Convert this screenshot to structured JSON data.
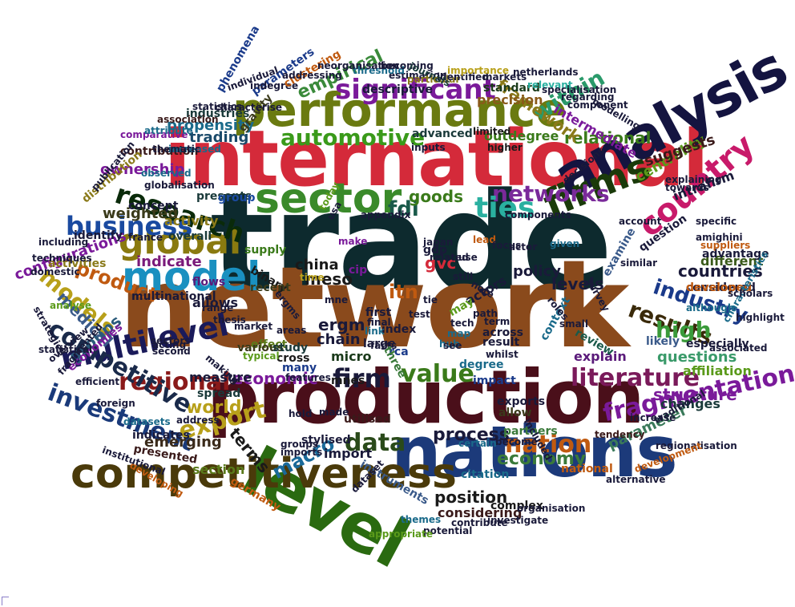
{
  "words": [
    {
      "text": "trade",
      "color": "#0d2a2e"
    },
    {
      "text": "network",
      "color": "#8a4a1c"
    },
    {
      "text": "international",
      "color": "#d42a3a"
    },
    {
      "text": "production",
      "color": "#4a0f1a"
    },
    {
      "text": "nations",
      "color": "#1c3a7a"
    },
    {
      "text": "level",
      "color": "#2a6a10"
    },
    {
      "text": "competitiveness",
      "color": "#4a3a0a"
    },
    {
      "text": "performance",
      "color": "#6a7a10"
    },
    {
      "text": "analysis",
      "color": "#141440"
    },
    {
      "text": "sector",
      "color": "#3a8a2a"
    },
    {
      "text": "model",
      "color": "#1a90c0"
    },
    {
      "text": "firms",
      "color": "#1a3a0a"
    },
    {
      "text": "global",
      "color": "#8a7a10"
    },
    {
      "text": "significant",
      "color": "#7a1a9a"
    },
    {
      "text": "research",
      "color": "#0a2a0a"
    },
    {
      "text": "automotive",
      "color": "#3a9a1a"
    },
    {
      "text": "networks",
      "color": "#7a2a9a"
    },
    {
      "text": "country",
      "color": "#c81a6a"
    },
    {
      "text": "ties",
      "color": "#2ab0a0"
    },
    {
      "text": "business",
      "color": "#1a4aa0"
    },
    {
      "text": "multilevel",
      "color": "#1a1a5a"
    },
    {
      "text": "investment",
      "color": "#1a3a7a"
    },
    {
      "text": "regional",
      "color": "#8a1a1a"
    },
    {
      "text": "models",
      "color": "#b8a01a"
    },
    {
      "text": "literature",
      "color": "#7a1a5a"
    },
    {
      "text": "industry",
      "color": "#1a3a8a"
    },
    {
      "text": "results",
      "color": "#3a2a0a"
    },
    {
      "text": "nation",
      "color": "#c05a10"
    },
    {
      "text": "value",
      "color": "#3a7a1a"
    },
    {
      "text": "data",
      "color": "#2a4a1a"
    },
    {
      "text": "firm",
      "color": "#1a1a3a"
    },
    {
      "text": "export",
      "color": "#b8a01a"
    },
    {
      "text": "world",
      "color": "#b8a01a"
    },
    {
      "text": "fragmentation",
      "color": "#7a1a9a"
    },
    {
      "text": "economy",
      "color": "#3a7a3a"
    },
    {
      "text": "high",
      "color": "#3a9a3a"
    },
    {
      "text": "within",
      "color": "#2a9a6a"
    },
    {
      "text": "competitive",
      "color": "#1a2a4a"
    },
    {
      "text": "fdi",
      "color": "#1a5a4a"
    },
    {
      "text": "macro",
      "color": "#1a6a9a"
    },
    {
      "text": "economic",
      "color": "#7a1a9a"
    },
    {
      "text": "structure",
      "color": "#7a1a9a"
    },
    {
      "text": "process",
      "color": "#1a1a3a"
    },
    {
      "text": "position",
      "color": "#1a1a1a"
    },
    {
      "text": "terms",
      "color": "#1a1a1a"
    },
    {
      "text": "relational",
      "color": "#3a7a1a"
    },
    {
      "text": "questions",
      "color": "#3a9a6a"
    },
    {
      "text": "medical",
      "color": "#3a5a8a"
    },
    {
      "text": "groups",
      "color": "#2a5a7a"
    },
    {
      "text": "ownership",
      "color": "#7a1a9a"
    },
    {
      "text": "product",
      "color": "#c05a10"
    },
    {
      "text": "meso",
      "color": "#1a1a1a"
    },
    {
      "text": "goods",
      "color": "#3a7a1a"
    },
    {
      "text": "empirical",
      "color": "#3a8a3a"
    },
    {
      "text": "framework",
      "color": "#8a7a1a"
    },
    {
      "text": "intermediate",
      "color": "#7a1a9a"
    },
    {
      "text": "centrality",
      "color": "#5a9a1a"
    },
    {
      "text": "countries",
      "color": "#1a1a3a"
    },
    {
      "text": "levels",
      "color": "#1a1a3a"
    },
    {
      "text": "propensity",
      "color": "#1a6a8a"
    },
    {
      "text": "trading",
      "color": "#1a4a6a"
    },
    {
      "text": "emerging",
      "color": "#3a2a1a"
    },
    {
      "text": "indicate",
      "color": "#7a1a7a"
    },
    {
      "text": "activity",
      "color": "#8a7a1a"
    },
    {
      "text": "weighted",
      "color": "#3a3a1a"
    },
    {
      "text": "gvc",
      "color": "#d42a3a"
    },
    {
      "text": "itn",
      "color": "#c05a10"
    },
    {
      "text": "china",
      "color": "#1a1a1a"
    },
    {
      "text": "ergm",
      "color": "#1a1a3a"
    },
    {
      "text": "chain",
      "color": "#1a1a3a"
    },
    {
      "text": "micro",
      "color": "#1a3a1a"
    },
    {
      "text": "import",
      "color": "#1a1a3a"
    },
    {
      "text": "section",
      "color": "#5a7a1a"
    },
    {
      "text": "affiliation",
      "color": "#5a9a1a"
    },
    {
      "text": "changes",
      "color": "#1a3a3a"
    },
    {
      "text": "considered",
      "color": "#1a1a3a"
    },
    {
      "text": "parameter",
      "color": "#3a7a5a"
    },
    {
      "text": "policy",
      "color": "#1a1a3a"
    },
    {
      "text": "different",
      "color": "#3a5a1a"
    },
    {
      "text": "intrafirm",
      "color": "#1a1a3a"
    },
    {
      "text": "suggests",
      "color": "#3a1a1a"
    },
    {
      "text": "advantage",
      "color": "#1a1a3a"
    },
    {
      "text": "developed",
      "color": "#c05a10"
    },
    {
      "text": "especially",
      "color": "#1a1a3a"
    },
    {
      "text": "likely",
      "color": "#3a5a8a"
    },
    {
      "text": "explain",
      "color": "#5a1a7a"
    },
    {
      "text": "review",
      "color": "#1a5a4a"
    },
    {
      "text": "context",
      "color": "#1a6a8a"
    },
    {
      "text": "across",
      "color": "#1a1a3a"
    },
    {
      "text": "result",
      "color": "#1a1a3a"
    },
    {
      "text": "impact",
      "color": "#1a3a8a"
    },
    {
      "text": "exports",
      "color": "#1a1a3a"
    },
    {
      "text": "allow",
      "color": "#3a3a1a"
    },
    {
      "text": "partners",
      "color": "#3a7a3a"
    },
    {
      "text": "considering",
      "color": "#3a1a1a"
    },
    {
      "text": "citation",
      "color": "#1a6a8a"
    },
    {
      "text": "instruments",
      "color": "#3a5a8a"
    },
    {
      "text": "stylised",
      "color": "#1a1a3a"
    },
    {
      "text": "utilised",
      "color": "#3a1a1a"
    },
    {
      "text": "spread",
      "color": "#1a3a3a"
    },
    {
      "text": "measure",
      "color": "#1a1a3a"
    },
    {
      "text": "effect",
      "color": "#5a7a1a"
    },
    {
      "text": "various",
      "color": "#3a3a1a"
    },
    {
      "text": "study",
      "color": "#1a3a3a"
    },
    {
      "text": "cross",
      "color": "#1a1a1a"
    },
    {
      "text": "many",
      "color": "#1a3a8a"
    },
    {
      "text": "mnes",
      "color": "#1a1a1a"
    },
    {
      "text": "index",
      "color": "#1a1a3a"
    },
    {
      "text": "large",
      "color": "#1a1a3a"
    },
    {
      "text": "rca",
      "color": "#1a3a8a"
    },
    {
      "text": "first",
      "color": "#1a1a3a"
    },
    {
      "text": "cip",
      "color": "#7a1a9a"
    },
    {
      "text": "binary",
      "color": "#1a1a1a"
    },
    {
      "text": "multinational",
      "color": "#1a1a3a"
    },
    {
      "text": "configurations",
      "color": "#7a1a9a"
    },
    {
      "text": "allows",
      "color": "#1a1a3a"
    },
    {
      "text": "flows",
      "color": "#5a1a7a"
    },
    {
      "text": "overall",
      "color": "#1a3a3a"
    },
    {
      "text": "recent",
      "color": "#3a3a1a"
    },
    {
      "text": "supply",
      "color": "#3a7a1a"
    },
    {
      "text": "presents",
      "color": "#1a3a3a"
    },
    {
      "text": "group",
      "color": "#1a4aa0"
    },
    {
      "text": "concept",
      "color": "#1a1a3a"
    },
    {
      "text": "contribution",
      "color": "#3a1a1a"
    },
    {
      "text": "comparative",
      "color": "#7a1a9a"
    },
    {
      "text": "globalisation",
      "color": "#1a1a3a"
    },
    {
      "text": "observed",
      "color": "#1a6a8a"
    },
    {
      "text": "distribution",
      "color": "#8a7a1a"
    },
    {
      "text": "identify",
      "color": "#1a1a3a"
    },
    {
      "text": "activities",
      "color": "#8a7a1a"
    },
    {
      "text": "industries",
      "color": "#1a3a3a"
    },
    {
      "text": "statistics",
      "color": "#1a1a3a"
    },
    {
      "text": "phenomena",
      "color": "#1a3a8a"
    },
    {
      "text": "gravity",
      "color": "#3a3a1a"
    },
    {
      "text": "attribute",
      "color": "#1a6a8a"
    },
    {
      "text": "increased",
      "color": "#1a6a8a"
    },
    {
      "text": "association",
      "color": "#3a1a1a"
    },
    {
      "text": "parameters",
      "color": "#1a3a8a"
    },
    {
      "text": "indegree",
      "color": "#1a1a3a"
    },
    {
      "text": "clustering",
      "color": "#c05a10"
    },
    {
      "text": "descriptive",
      "color": "#1a1a3a"
    },
    {
      "text": "estimation",
      "color": "#1a1a3a"
    },
    {
      "text": "particular",
      "color": "#8a7a1a"
    },
    {
      "text": "identified",
      "color": "#1a1a3a"
    },
    {
      "text": "standard",
      "color": "#1a3a1a"
    },
    {
      "text": "precision",
      "color": "#8a5a1a"
    },
    {
      "text": "advanced",
      "color": "#1a3a3a"
    },
    {
      "text": "inputs",
      "color": "#1a1a3a"
    },
    {
      "text": "outdegree",
      "color": "#3a7a1a"
    },
    {
      "text": "higher",
      "color": "#1a1a1a"
    },
    {
      "text": "limited",
      "color": "#1a1a1a"
    },
    {
      "text": "threshold",
      "color": "#1a6a8a"
    },
    {
      "text": "becoming",
      "color": "#1a1a3a"
    },
    {
      "text": "journals",
      "color": "#1a3a3a"
    },
    {
      "text": "markets",
      "color": "#1a1a3a"
    },
    {
      "text": "netherlands",
      "color": "#1a1a3a"
    },
    {
      "text": "relevant",
      "color": "#2ab0a0"
    },
    {
      "text": "specialisation",
      "color": "#1a1a3a"
    },
    {
      "text": "decisions",
      "color": "#1a1a3a"
    },
    {
      "text": "modelling",
      "color": "#1a1a3a"
    },
    {
      "text": "account",
      "color": "#1a1a3a"
    },
    {
      "text": "specific",
      "color": "#1a1a3a"
    },
    {
      "text": "suppliers",
      "color": "#c05a10"
    },
    {
      "text": "similar",
      "color": "#1a1a3a"
    },
    {
      "text": "question",
      "color": "#1a1a3a"
    },
    {
      "text": "examine",
      "color": "#3a5a8a"
    },
    {
      "text": "survey",
      "color": "#1a1a3a"
    },
    {
      "text": "although",
      "color": "#1a6a8a"
    },
    {
      "text": "highlight",
      "color": "#1a1a3a"
    },
    {
      "text": "characteristics",
      "color": "#1a6a8a"
    },
    {
      "text": "scholars",
      "color": "#1a1a3a"
    },
    {
      "text": "regionalisation",
      "color": "#1a1a3a"
    },
    {
      "text": "development",
      "color": "#c05a10"
    },
    {
      "text": "alternative",
      "color": "#1a1a3a"
    },
    {
      "text": "national",
      "color": "#c05a10"
    },
    {
      "text": "tendency",
      "color": "#3a1a1a"
    },
    {
      "text": "increase",
      "color": "#1a1a3a"
    },
    {
      "text": "complex",
      "color": "#1a1a1a"
    },
    {
      "text": "investigate",
      "color": "#1a1a3a"
    },
    {
      "text": "contribute",
      "color": "#1a1a3a"
    },
    {
      "text": "potential",
      "color": "#1a1a3a"
    },
    {
      "text": "appropriate",
      "color": "#5a9a1a"
    },
    {
      "text": "themes",
      "color": "#1a6a8a"
    },
    {
      "text": "dataset",
      "color": "#1a1a3a"
    },
    {
      "text": "germany",
      "color": "#c05a10"
    },
    {
      "text": "indicates",
      "color": "#1a1a3a"
    },
    {
      "text": "presented",
      "color": "#3a1a1a"
    },
    {
      "text": "address",
      "color": "#1a1a3a"
    },
    {
      "text": "datasets",
      "color": "#1a6a8a"
    },
    {
      "text": "foreign",
      "color": "#1a1a3a"
    },
    {
      "text": "economies",
      "color": "#7a1a9a"
    },
    {
      "text": "fragmented",
      "color": "#1a1a3a"
    },
    {
      "text": "second",
      "color": "#1a1a3a"
    },
    {
      "text": "sectors",
      "color": "#1a1a3a"
    },
    {
      "text": "techniques",
      "color": "#1a1a3a"
    },
    {
      "text": "domestic",
      "color": "#1a1a3a"
    },
    {
      "text": "including",
      "color": "#1a1a3a"
    },
    {
      "text": "statistical",
      "color": "#1a1a3a"
    },
    {
      "text": "certain",
      "color": "#1a6a8a"
    },
    {
      "text": "become",
      "color": "#1a1a3a"
    },
    {
      "text": "whilst",
      "color": "#1a1a3a"
    },
    {
      "text": "degree",
      "color": "#1a6a8a"
    },
    {
      "text": "hub",
      "color": "#1a6a8a"
    },
    {
      "text": "map",
      "color": "#1a6a8a"
    },
    {
      "text": "see",
      "color": "#1a1a3a"
    },
    {
      "text": "final",
      "color": "#1a1a3a"
    },
    {
      "text": "facts",
      "color": "#1a1a3a"
    },
    {
      "text": "actors",
      "color": "#1a1a3a"
    },
    {
      "text": "may",
      "color": "#5a9a1a"
    },
    {
      "text": "gdp",
      "color": "#1a1a3a"
    },
    {
      "text": "make",
      "color": "#7a1a9a"
    },
    {
      "text": "actor",
      "color": "#1a1a3a"
    },
    {
      "text": "given",
      "color": "#1a6a8a"
    },
    {
      "text": "term",
      "color": "#1a1a3a"
    },
    {
      "text": "tech",
      "color": "#1a1a3a"
    },
    {
      "text": "note",
      "color": "#1a1a3a"
    },
    {
      "text": "roles",
      "color": "#1a1a3a"
    },
    {
      "text": "link",
      "color": "#1a6a8a"
    },
    {
      "text": "test",
      "color": "#1a1a3a"
    },
    {
      "text": "time",
      "color": "#b8a01a"
    },
    {
      "text": "lead",
      "color": "#c05a10"
    },
    {
      "text": "still",
      "color": "#1a1a3a"
    },
    {
      "text": "use",
      "color": "#1a1a3a"
    },
    {
      "text": "components",
      "color": "#1a1a3a"
    },
    {
      "text": "today",
      "color": "#5a9a1a"
    },
    {
      "text": "appendix",
      "color": "#1a1a3a"
    },
    {
      "text": "thesis",
      "color": "#1a1a3a"
    },
    {
      "text": "market",
      "color": "#1a1a3a"
    },
    {
      "text": "areas",
      "color": "#1a1a3a"
    },
    {
      "text": "making",
      "color": "#1a1a3a"
    },
    {
      "text": "typical",
      "color": "#5a9a1a"
    },
    {
      "text": "features",
      "color": "#1a1a3a"
    },
    {
      "text": "japan",
      "color": "#1a1a3a"
    },
    {
      "text": "related",
      "color": "#1a1a3a"
    },
    {
      "text": "small",
      "color": "#1a1a3a"
    },
    {
      "text": "range",
      "color": "#1a1a3a"
    },
    {
      "text": "ergms",
      "color": "#1a1a3a"
    },
    {
      "text": "mne",
      "color": "#1a1a3a"
    },
    {
      "text": "tie",
      "color": "#1a1a3a"
    },
    {
      "text": "three",
      "color": "#3a7a3a"
    },
    {
      "text": "france",
      "color": "#1a1a3a"
    },
    {
      "text": "overview",
      "color": "#1a1a3a"
    },
    {
      "text": "acting",
      "color": "#1a1a3a"
    },
    {
      "text": "analyse",
      "color": "#5a9a1a"
    },
    {
      "text": "thematic",
      "color": "#1a1a3a"
    },
    {
      "text": "regarding",
      "color": "#1a1a3a"
    },
    {
      "text": "component",
      "color": "#1a1a3a"
    },
    {
      "text": "importance",
      "color": "#b8a01a"
    },
    {
      "text": "neorganisation",
      "color": "#1a1a3a"
    },
    {
      "text": "addressing",
      "color": "#1a1a3a"
    },
    {
      "text": "characterise",
      "color": "#1a1a3a"
    },
    {
      "text": "individual",
      "color": "#1a1a3a"
    },
    {
      "text": "explaining",
      "color": "#1a1a3a"
    },
    {
      "text": "towards",
      "color": "#1a1a3a"
    },
    {
      "text": "amighini",
      "color": "#1a1a3a"
    },
    {
      "text": "associated",
      "color": "#1a1a3a"
    },
    {
      "text": "traditional",
      "color": "#1a1a3a"
    },
    {
      "text": "organisation",
      "color": "#1a1a3a"
    },
    {
      "text": "included",
      "color": "#1a1a3a"
    },
    {
      "text": "hold",
      "color": "#1a1a3a"
    },
    {
      "text": "made",
      "color": "#1a1a3a"
    },
    {
      "text": "groups",
      "color": "#1a1a3a"
    },
    {
      "text": "imports",
      "color": "#1a1a3a"
    },
    {
      "text": "developing",
      "color": "#c05a10"
    },
    {
      "text": "institutional",
      "color": "#1a1a3a"
    },
    {
      "text": "efficient",
      "color": "#1a1a3a"
    },
    {
      "text": "strategies",
      "color": "#1a1a3a"
    },
    {
      "text": "publication",
      "color": "#1a1a3a"
    },
    {
      "text": "usa",
      "color": "#1a1a3a"
    },
    {
      "text": "focus",
      "color": "#1a1a3a"
    },
    {
      "text": "path",
      "color": "#1a1a3a"
    }
  ]
}
